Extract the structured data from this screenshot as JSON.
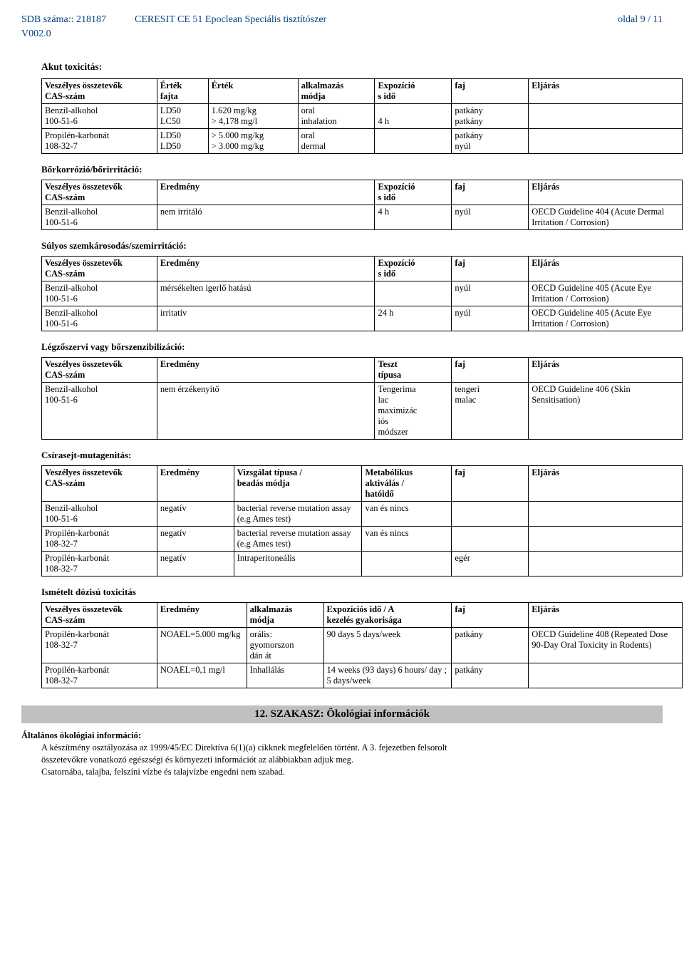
{
  "header": {
    "sdb_label": "SDB száma:: 218187",
    "product": "CERESIT CE 51 Epoclean Speciális tisztítószer",
    "page": "oldal 9 / 11",
    "version": "V002.0"
  },
  "sections": {
    "acute_tox": "Akut toxicitás:",
    "skin_corr": "Bőrkorrózió/bőrirritáció:",
    "eye_dmg": "Súlyos szemkárosodás/szemirritáció:",
    "sens": "Légzőszervi vagy bőrszenzibilizáció:",
    "mutagen": "Csírasejt-mutagenitás:",
    "repeat_dose": "Ismételt dózisú toxicitás"
  },
  "t1": {
    "h": [
      "Veszélyes összetevők\nCAS-szám",
      "Érték\nfajta",
      "Érték",
      "alkalmazás\nmódja",
      "Expozíció\ns idő",
      "faj",
      "Eljárás"
    ],
    "r1": [
      "Benzil-alkohol\n100-51-6",
      "LD50\nLC50",
      "1.620 mg/kg\n> 4,178 mg/l",
      "oral\ninhalation",
      "\n4 h",
      "patkány\npatkány",
      ""
    ],
    "r2": [
      "Propilén-karbonát\n108-32-7",
      "LD50\nLD50",
      "> 5.000 mg/kg\n> 3.000 mg/kg",
      "oral\ndermal",
      "",
      "patkány\nnyúl",
      ""
    ]
  },
  "t2": {
    "h": [
      "Veszélyes összetevők\nCAS-szám",
      "Eredmény",
      "Expozíció\ns idő",
      "faj",
      "Eljárás"
    ],
    "r1": [
      "Benzil-alkohol\n100-51-6",
      "nem irritáló",
      "4 h",
      "nyúl",
      "OECD Guideline 404 (Acute Dermal Irritation / Corrosion)"
    ]
  },
  "t3": {
    "h": [
      "Veszélyes összetevők\nCAS-szám",
      "Eredmény",
      "Expozíció\ns idő",
      "faj",
      "Eljárás"
    ],
    "r1": [
      "Benzil-alkohol\n100-51-6",
      "mérsékelten igerlő hatású",
      "",
      "nyúl",
      "OECD Guideline 405 (Acute Eye Irritation / Corrosion)"
    ],
    "r2": [
      "Benzil-alkohol\n100-51-6",
      "irritatív",
      "24 h",
      "nyúl",
      "OECD Guideline 405 (Acute Eye Irritation / Corrosion)"
    ]
  },
  "t4": {
    "h": [
      "Veszélyes összetevők\nCAS-szám",
      "Eredmény",
      "Teszt\ntípusa",
      "faj",
      "Eljárás"
    ],
    "r1": [
      "Benzil-alkohol\n100-51-6",
      "nem érzékenyítő",
      "Tengerima\nlac\nmaximizác\niós\nmódszer",
      "tengeri\nmalac",
      "OECD Guideline 406 (Skin Sensitisation)"
    ]
  },
  "t5": {
    "h": [
      "Veszélyes összetevők\nCAS-szám",
      "Eredmény",
      "Vizsgálat típusa /\nbeadás módja",
      "Metabólikus\naktiválás /\nhatóidő",
      "faj",
      "Eljárás"
    ],
    "r1": [
      "Benzil-alkohol\n100-51-6",
      "negatív",
      "bacterial reverse mutation assay (e.g Ames test)",
      "van és nincs",
      "",
      ""
    ],
    "r2": [
      "Propilén-karbonát\n108-32-7",
      "negatív",
      "bacterial reverse mutation assay (e.g Ames test)",
      "van és nincs",
      "",
      ""
    ],
    "r3": [
      "Propilén-karbonát\n108-32-7",
      "negatív",
      "Intraperitoneális",
      "",
      "egér",
      ""
    ]
  },
  "t6": {
    "h": [
      "Veszélyes összetevők\nCAS-szám",
      "Eredmény",
      "alkalmazás\nmódja",
      "Expozíciós idő / A\nkezelés gyakorisága",
      "faj",
      "Eljárás"
    ],
    "r1": [
      "Propilén-karbonát\n108-32-7",
      "NOAEL=5.000 mg/kg",
      "orális:\ngyomorszon\ndán át",
      "90 days 5 days/week",
      "patkány",
      "OECD Guideline 408 (Repeated Dose 90-Day Oral Toxicity in Rodents)"
    ],
    "r2": [
      "Propilén-karbonát\n108-32-7",
      "NOAEL=0,1 mg/l",
      "Inhallálás",
      "14 weeks (93 days) 6 hours/ day ; 5 days/week",
      "patkány",
      ""
    ]
  },
  "s12": {
    "bar": "12. SZAKASZ: Ökológiai információk",
    "sub": "Általános ökológiai információ:",
    "p1": "A készítmény osztályozása az 1999/45/EC Direktíva 6(1)(a) cikknek megfelelően történt. A 3. fejezetben felsorolt",
    "p2": "összetevőkre vonatkozó egészségi és környezeti információt az alábbiakban adjuk meg.",
    "p3": "Csatornába, talajba, felszíni vízbe és talajvízbe engedni nem szabad."
  }
}
